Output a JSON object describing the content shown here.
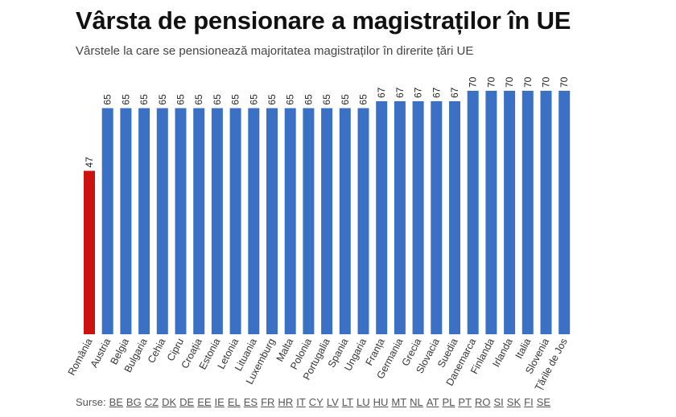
{
  "chart_data": {
    "type": "bar",
    "title": "Vârsta de pensionare a magistraților în UE",
    "subtitle": "Vârstele la care se pensionează majoritatea magistraților în direrite țări UE",
    "xlabel": "",
    "ylabel": "",
    "ylim": [
      0,
      70
    ],
    "categories": [
      "România",
      "Austria",
      "Belgia",
      "Bulgaria",
      "Cehia",
      "Cipru",
      "Croația",
      "Estonia",
      "Letonia",
      "Lituania",
      "Luxemburg",
      "Malta",
      "Polonia",
      "Portugalia",
      "Spania",
      "Ungaria",
      "Franța",
      "Germania",
      "Grecia",
      "Slovacia",
      "Suedia",
      "Danemarca",
      "Finlanda",
      "Irlanda",
      "Italia",
      "Slovenia",
      "Țările de Jos"
    ],
    "values": [
      47,
      65,
      65,
      65,
      65,
      65,
      65,
      65,
      65,
      65,
      65,
      65,
      65,
      65,
      65,
      65,
      67,
      67,
      67,
      67,
      67,
      70,
      70,
      70,
      70,
      70,
      70
    ],
    "data_labels": [
      "47",
      "65",
      "65",
      "65",
      "65",
      "65",
      "65",
      "65",
      "65",
      "65",
      "65",
      "65",
      "65",
      "65",
      "65",
      "65",
      "67",
      "67",
      "67",
      "67",
      "67",
      "70",
      "70",
      "70",
      "70",
      "70",
      "70"
    ],
    "colors": {
      "highlight": "#CC1111",
      "default": "#3B71C4"
    },
    "highlight_index": 0
  },
  "sources": {
    "label": "Surse:",
    "links": [
      "BE",
      "BG",
      "CZ",
      "DK",
      "DE",
      "EE",
      "IE",
      "EL",
      "ES",
      "FR",
      "HR",
      "IT",
      "CY",
      "LV",
      "LT",
      "LU",
      "HU",
      "MT",
      "NL",
      "AT",
      "PL",
      "PT",
      "RO",
      "SI",
      "SK",
      "FI",
      "SE"
    ]
  }
}
